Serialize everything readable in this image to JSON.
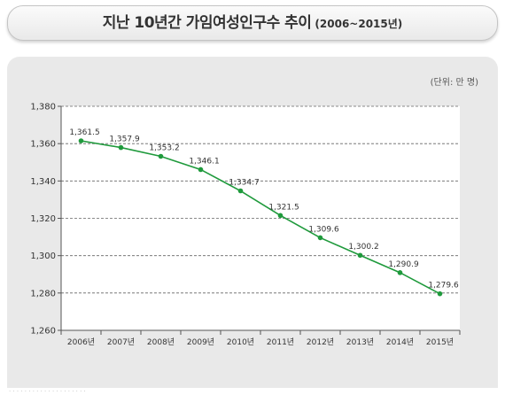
{
  "header": {
    "title": "지난 10년간 가임여성인구수 추이",
    "subtitle": "(2006~2015년)"
  },
  "unit_label": "(단위: 만 명)",
  "colors": {
    "line": "#1f9a3c",
    "grid": "#666666",
    "panel": "#e9e9e9",
    "plot": "#ffffff"
  },
  "chart_data": {
    "type": "line",
    "title": "지난 10년간 가임여성인구수 추이",
    "categories": [
      "2006년",
      "2007년",
      "2008년",
      "2009년",
      "2010년",
      "2011년",
      "2012년",
      "2013년",
      "2014년",
      "2015년"
    ],
    "series": [
      {
        "values": [
          1361.5,
          1357.9,
          1353.2,
          1346.1,
          1334.7,
          1321.5,
          1309.6,
          1300.2,
          1290.9,
          1279.6
        ],
        "labels": [
          "1,361.5",
          "1,357.9",
          "1,353.2",
          "1,346.1",
          "1,334.7",
          "1,321.5",
          "1,309.6",
          "1,300.2",
          "1,290.9",
          "1,279.6"
        ]
      }
    ],
    "yticks": [
      1260,
      1280,
      1300,
      1320,
      1340,
      1360,
      1380
    ],
    "ytick_labels": [
      "1,260",
      "1,280",
      "1,300",
      "1,320",
      "1,340",
      "1,360",
      "1,380"
    ],
    "ylim": [
      1260,
      1380
    ],
    "grid": true,
    "legend": "none",
    "unit": "만 명"
  }
}
